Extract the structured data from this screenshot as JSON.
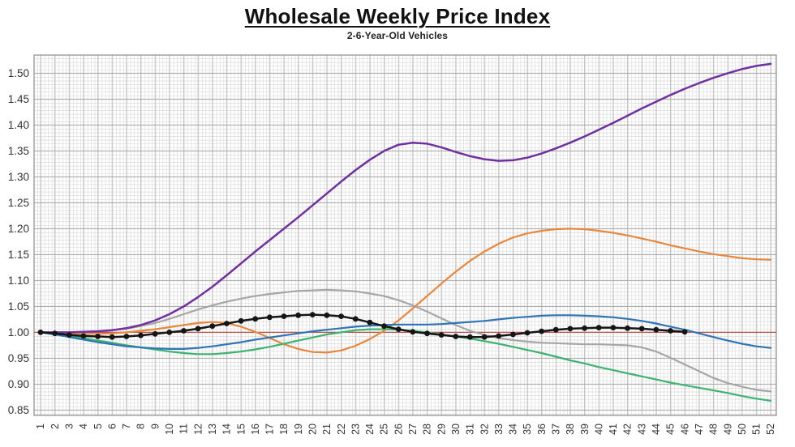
{
  "header": {
    "title": "Wholesale Weekly Price Index",
    "subtitle": "2-6-Year-Old Vehicles"
  },
  "chart_data": {
    "type": "line",
    "title": "Wholesale Weekly Price Index",
    "subtitle": "2-6-Year-Old Vehicles",
    "xlim": [
      1,
      52
    ],
    "ylim": [
      0.835,
      1.535
    ],
    "grid": {
      "minor": true,
      "major": true,
      "style": "fine graph-paper grid"
    },
    "legend_position": "none-visible",
    "x_ticks": [
      1,
      2,
      3,
      4,
      5,
      6,
      7,
      8,
      9,
      10,
      11,
      12,
      13,
      14,
      15,
      16,
      17,
      18,
      19,
      20,
      21,
      22,
      23,
      24,
      25,
      26,
      27,
      28,
      29,
      30,
      31,
      32,
      33,
      34,
      35,
      36,
      37,
      38,
      39,
      40,
      41,
      42,
      43,
      44,
      45,
      46,
      47,
      48,
      49,
      50,
      51,
      52
    ],
    "y_ticks": [
      "1.50",
      "1.45",
      "1.40",
      "1.35",
      "1.30",
      "1.25",
      "1.20",
      "1.15",
      "1.10",
      "1.05",
      "1.00",
      "0.95",
      "0.90",
      "0.85"
    ],
    "baseline": {
      "name": "reference-index-1.00",
      "color": "#C0504D",
      "value": 1.0
    },
    "series": [
      {
        "name": "gray-line",
        "color": "#A6A6A6",
        "width": 2.2,
        "markers": false,
        "values": [
          1.0,
          1.0,
          1.0,
          1.001,
          1.002,
          1.004,
          1.007,
          1.012,
          1.018,
          1.026,
          1.035,
          1.044,
          1.052,
          1.059,
          1.065,
          1.07,
          1.074,
          1.077,
          1.08,
          1.081,
          1.082,
          1.081,
          1.079,
          1.075,
          1.07,
          1.062,
          1.052,
          1.04,
          1.027,
          1.014,
          1.003,
          0.995,
          0.989,
          0.985,
          0.982,
          0.98,
          0.979,
          0.978,
          0.977,
          0.977,
          0.976,
          0.975,
          0.971,
          0.963,
          0.951,
          0.938,
          0.925,
          0.912,
          0.902,
          0.895,
          0.889,
          0.886
        ]
      },
      {
        "name": "orange-line",
        "color": "#E8873C",
        "width": 2.2,
        "markers": false,
        "values": [
          1.0,
          0.999,
          0.998,
          0.997,
          0.997,
          0.998,
          1.0,
          1.003,
          1.006,
          1.01,
          1.014,
          1.018,
          1.02,
          1.018,
          1.011,
          1.001,
          0.989,
          0.977,
          0.968,
          0.962,
          0.961,
          0.965,
          0.974,
          0.987,
          1.003,
          1.023,
          1.046,
          1.07,
          1.094,
          1.117,
          1.138,
          1.156,
          1.171,
          1.183,
          1.191,
          1.196,
          1.199,
          1.2,
          1.199,
          1.196,
          1.192,
          1.187,
          1.181,
          1.175,
          1.168,
          1.162,
          1.156,
          1.151,
          1.147,
          1.143,
          1.141,
          1.14
        ]
      },
      {
        "name": "green-line",
        "color": "#3CB371",
        "width": 2.2,
        "markers": false,
        "values": [
          1.0,
          0.997,
          0.993,
          0.989,
          0.984,
          0.98,
          0.975,
          0.971,
          0.967,
          0.963,
          0.96,
          0.958,
          0.958,
          0.96,
          0.963,
          0.967,
          0.972,
          0.978,
          0.984,
          0.99,
          0.996,
          1.0,
          1.004,
          1.006,
          1.006,
          1.005,
          1.003,
          1.0,
          0.996,
          0.992,
          0.988,
          0.983,
          0.978,
          0.972,
          0.966,
          0.96,
          0.953,
          0.946,
          0.94,
          0.933,
          0.927,
          0.921,
          0.915,
          0.909,
          0.903,
          0.898,
          0.893,
          0.888,
          0.883,
          0.877,
          0.872,
          0.868
        ]
      },
      {
        "name": "blue-line",
        "color": "#2E75B6",
        "width": 2.2,
        "markers": false,
        "values": [
          1.0,
          0.996,
          0.991,
          0.986,
          0.981,
          0.977,
          0.973,
          0.971,
          0.969,
          0.968,
          0.968,
          0.97,
          0.973,
          0.977,
          0.981,
          0.986,
          0.99,
          0.994,
          0.998,
          1.002,
          1.005,
          1.008,
          1.011,
          1.013,
          1.014,
          1.015,
          1.015,
          1.015,
          1.016,
          1.018,
          1.02,
          1.022,
          1.025,
          1.028,
          1.03,
          1.032,
          1.033,
          1.033,
          1.032,
          1.031,
          1.029,
          1.026,
          1.022,
          1.017,
          1.011,
          1.005,
          0.998,
          0.991,
          0.984,
          0.978,
          0.973,
          0.97
        ]
      },
      {
        "name": "purple-line",
        "color": "#7030A0",
        "width": 2.5,
        "markers": false,
        "values": [
          1.0,
          1.0,
          1.0,
          1.001,
          1.002,
          1.004,
          1.008,
          1.014,
          1.023,
          1.035,
          1.05,
          1.068,
          1.088,
          1.11,
          1.133,
          1.156,
          1.178,
          1.2,
          1.222,
          1.245,
          1.268,
          1.291,
          1.313,
          1.333,
          1.35,
          1.362,
          1.366,
          1.364,
          1.357,
          1.348,
          1.34,
          1.334,
          1.331,
          1.332,
          1.337,
          1.345,
          1.355,
          1.366,
          1.378,
          1.391,
          1.404,
          1.418,
          1.432,
          1.445,
          1.458,
          1.47,
          1.481,
          1.491,
          1.5,
          1.508,
          1.514,
          1.518
        ]
      },
      {
        "name": "black-marker-line",
        "color": "#151515",
        "width": 2.5,
        "markers": true,
        "marker_radius": 3.4,
        "values": [
          1.0,
          0.998,
          0.995,
          0.993,
          0.992,
          0.991,
          0.992,
          0.994,
          0.997,
          1.0,
          1.003,
          1.007,
          1.012,
          1.017,
          1.022,
          1.026,
          1.029,
          1.031,
          1.033,
          1.034,
          1.033,
          1.031,
          1.026,
          1.019,
          1.012,
          1.006,
          1.001,
          0.998,
          0.995,
          0.992,
          0.991,
          0.991,
          0.993,
          0.996,
          0.999,
          1.002,
          1.005,
          1.007,
          1.008,
          1.009,
          1.009,
          1.008,
          1.007,
          1.005,
          1.003,
          1.001
        ]
      }
    ]
  }
}
